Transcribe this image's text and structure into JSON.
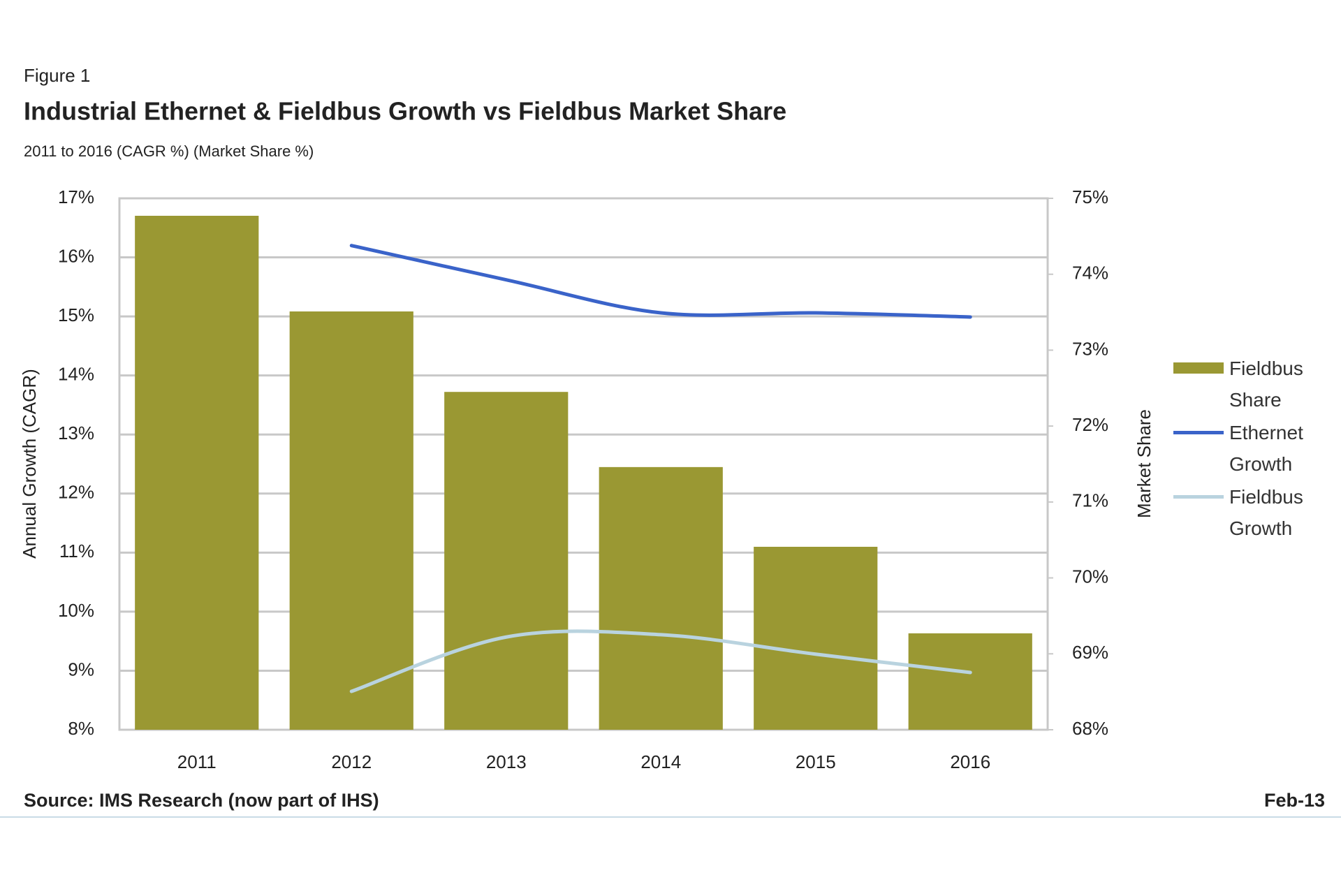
{
  "chart_data": {
    "type": "bar",
    "figure_label": "Figure 1",
    "title": "Industrial Ethernet & Fieldbus Growth vs Fieldbus Market Share",
    "subtitle": "2011 to 2016 (CAGR %) (Market Share %)",
    "y_label": "Annual Growth (CAGR)",
    "y2_label": "Market Share",
    "source": "Source: IMS Research (now part of IHS)",
    "date": "Feb-13",
    "categories": [
      "2011",
      "2012",
      "2013",
      "2014",
      "2015",
      "2016"
    ],
    "series": [
      {
        "name": "Fieldbus Share",
        "type": "bar",
        "axis": "y2",
        "color": "#9a9833",
        "values": [
          74.77,
          73.51,
          72.45,
          71.46,
          70.41,
          69.27
        ]
      },
      {
        "name": "Ethernet Growth",
        "type": "line",
        "color": "#3a63c9",
        "values": [
          null,
          16.2,
          15.62,
          15.06,
          15.06,
          14.99
        ]
      },
      {
        "name": "Fieldbus Growth",
        "type": "line",
        "color": "#b9d3df",
        "values": [
          null,
          8.65,
          9.57,
          9.61,
          9.28,
          8.97
        ]
      }
    ],
    "ylim": [
      8,
      17
    ],
    "yticks": [
      {
        "value": 8,
        "label": "8%"
      },
      {
        "value": 9,
        "label": "9%"
      },
      {
        "value": 10,
        "label": "10%"
      },
      {
        "value": 11,
        "label": "11%"
      },
      {
        "value": 12,
        "label": "12%"
      },
      {
        "value": 13,
        "label": "13%"
      },
      {
        "value": 14,
        "label": "14%"
      },
      {
        "value": 15,
        "label": "15%"
      },
      {
        "value": 16,
        "label": "16%"
      },
      {
        "value": 17,
        "label": "17%"
      }
    ],
    "y2lim": [
      68,
      75
    ],
    "y2ticks": [
      {
        "value": 68,
        "label": "68%"
      },
      {
        "value": 69,
        "label": "69%"
      },
      {
        "value": 70,
        "label": "70%"
      },
      {
        "value": 71,
        "label": "71%"
      },
      {
        "value": 72,
        "label": "72%"
      },
      {
        "value": 73,
        "label": "73%"
      },
      {
        "value": 74,
        "label": "74%"
      },
      {
        "value": 75,
        "label": "75%"
      }
    ],
    "grid": true,
    "legend_position": "right"
  }
}
